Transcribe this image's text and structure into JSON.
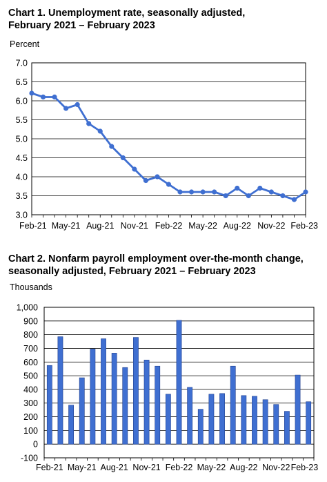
{
  "chart_data": [
    {
      "type": "line",
      "title_line1": "Chart 1. Unemployment rate, seasonally adjusted,",
      "title_line2": "February 2021 – February 2023",
      "ylabel": "Percent",
      "ylim": [
        3.0,
        7.0
      ],
      "yticks": [
        "3.0",
        "3.5",
        "4.0",
        "4.5",
        "5.0",
        "5.5",
        "6.0",
        "6.5",
        "7.0"
      ],
      "x_tick_labels": [
        "Feb-21",
        "May-21",
        "Aug-21",
        "Nov-21",
        "Feb-22",
        "May-22",
        "Aug-22",
        "Nov-22",
        "Feb-23"
      ],
      "grid": true,
      "color": "#3f6fd1",
      "series": [
        {
          "x": [
            "Feb-21",
            "Mar-21",
            "Apr-21",
            "May-21",
            "Jun-21",
            "Jul-21",
            "Aug-21",
            "Sep-21",
            "Oct-21",
            "Nov-21",
            "Dec-21",
            "Jan-22",
            "Feb-22",
            "Mar-22",
            "Apr-22",
            "May-22",
            "Jun-22",
            "Jul-22",
            "Aug-22",
            "Sep-22",
            "Oct-22",
            "Nov-22",
            "Dec-22",
            "Jan-23",
            "Feb-23"
          ],
          "values": [
            6.2,
            6.1,
            6.1,
            5.8,
            5.9,
            5.4,
            5.2,
            4.8,
            4.5,
            4.2,
            3.9,
            4.0,
            3.8,
            3.6,
            3.6,
            3.6,
            3.6,
            3.5,
            3.7,
            3.5,
            3.7,
            3.6,
            3.5,
            3.4,
            3.6
          ]
        }
      ]
    },
    {
      "type": "bar",
      "title_line1": "Chart 2. Nonfarm payroll employment over-the-month change,",
      "title_line2": "seasonally adjusted, February 2021 – February 2023",
      "ylabel": "Thousands",
      "ylim": [
        -100,
        1000
      ],
      "yticks": [
        "-100",
        "0",
        "100",
        "200",
        "300",
        "400",
        "500",
        "600",
        "700",
        "800",
        "900",
        "1,000"
      ],
      "x_tick_labels": [
        "Feb-21",
        "May-21",
        "Aug-21",
        "Nov-21",
        "Feb-22",
        "May-22",
        "Aug-22",
        "Nov-22",
        "Feb-23"
      ],
      "grid": true,
      "color": "#3f6fd1",
      "series": [
        {
          "x": [
            "Feb-21",
            "Mar-21",
            "Apr-21",
            "May-21",
            "Jun-21",
            "Jul-21",
            "Aug-21",
            "Sep-21",
            "Oct-21",
            "Nov-21",
            "Dec-21",
            "Jan-22",
            "Feb-22",
            "Mar-22",
            "Apr-22",
            "May-22",
            "Jun-22",
            "Jul-22",
            "Aug-22",
            "Sep-22",
            "Oct-22",
            "Nov-22",
            "Dec-22",
            "Jan-23",
            "Feb-23"
          ],
          "values": [
            575,
            785,
            285,
            485,
            695,
            770,
            665,
            560,
            780,
            615,
            570,
            365,
            905,
            415,
            255,
            365,
            370,
            570,
            355,
            350,
            325,
            290,
            240,
            505,
            310
          ]
        }
      ]
    }
  ]
}
